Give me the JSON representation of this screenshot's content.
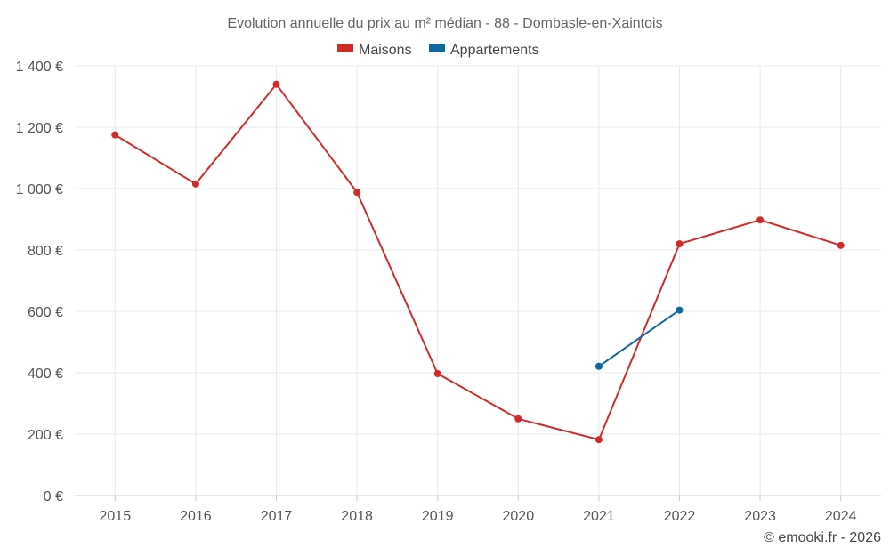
{
  "chart_data": {
    "type": "line",
    "title": "Evolution annuelle du prix au m² médian - 88 - Dombasle-en-Xaintois",
    "categories": [
      "2015",
      "2016",
      "2017",
      "2018",
      "2019",
      "2020",
      "2021",
      "2022",
      "2023",
      "2024"
    ],
    "series": [
      {
        "name": "Maisons",
        "color": "#d22a2a",
        "values": [
          1175,
          1015,
          1340,
          988,
          397,
          250,
          182,
          820,
          898,
          815
        ]
      },
      {
        "name": "Appartements",
        "color": "#0f68a0",
        "values": [
          null,
          null,
          null,
          null,
          null,
          null,
          421,
          604,
          null,
          null
        ]
      }
    ],
    "ylim": [
      0,
      1400
    ],
    "yticks": [
      0,
      200,
      400,
      600,
      800,
      1000,
      1200,
      1400
    ],
    "ytick_labels": [
      "0 €",
      "200 €",
      "400 €",
      "600 €",
      "800 €",
      "1 000 €",
      "1 200 €",
      "1 400 €"
    ],
    "xlabel": "",
    "ylabel": "",
    "grid": true,
    "legend_position": "top-center"
  },
  "credit": "© emooki.fr - 2026"
}
